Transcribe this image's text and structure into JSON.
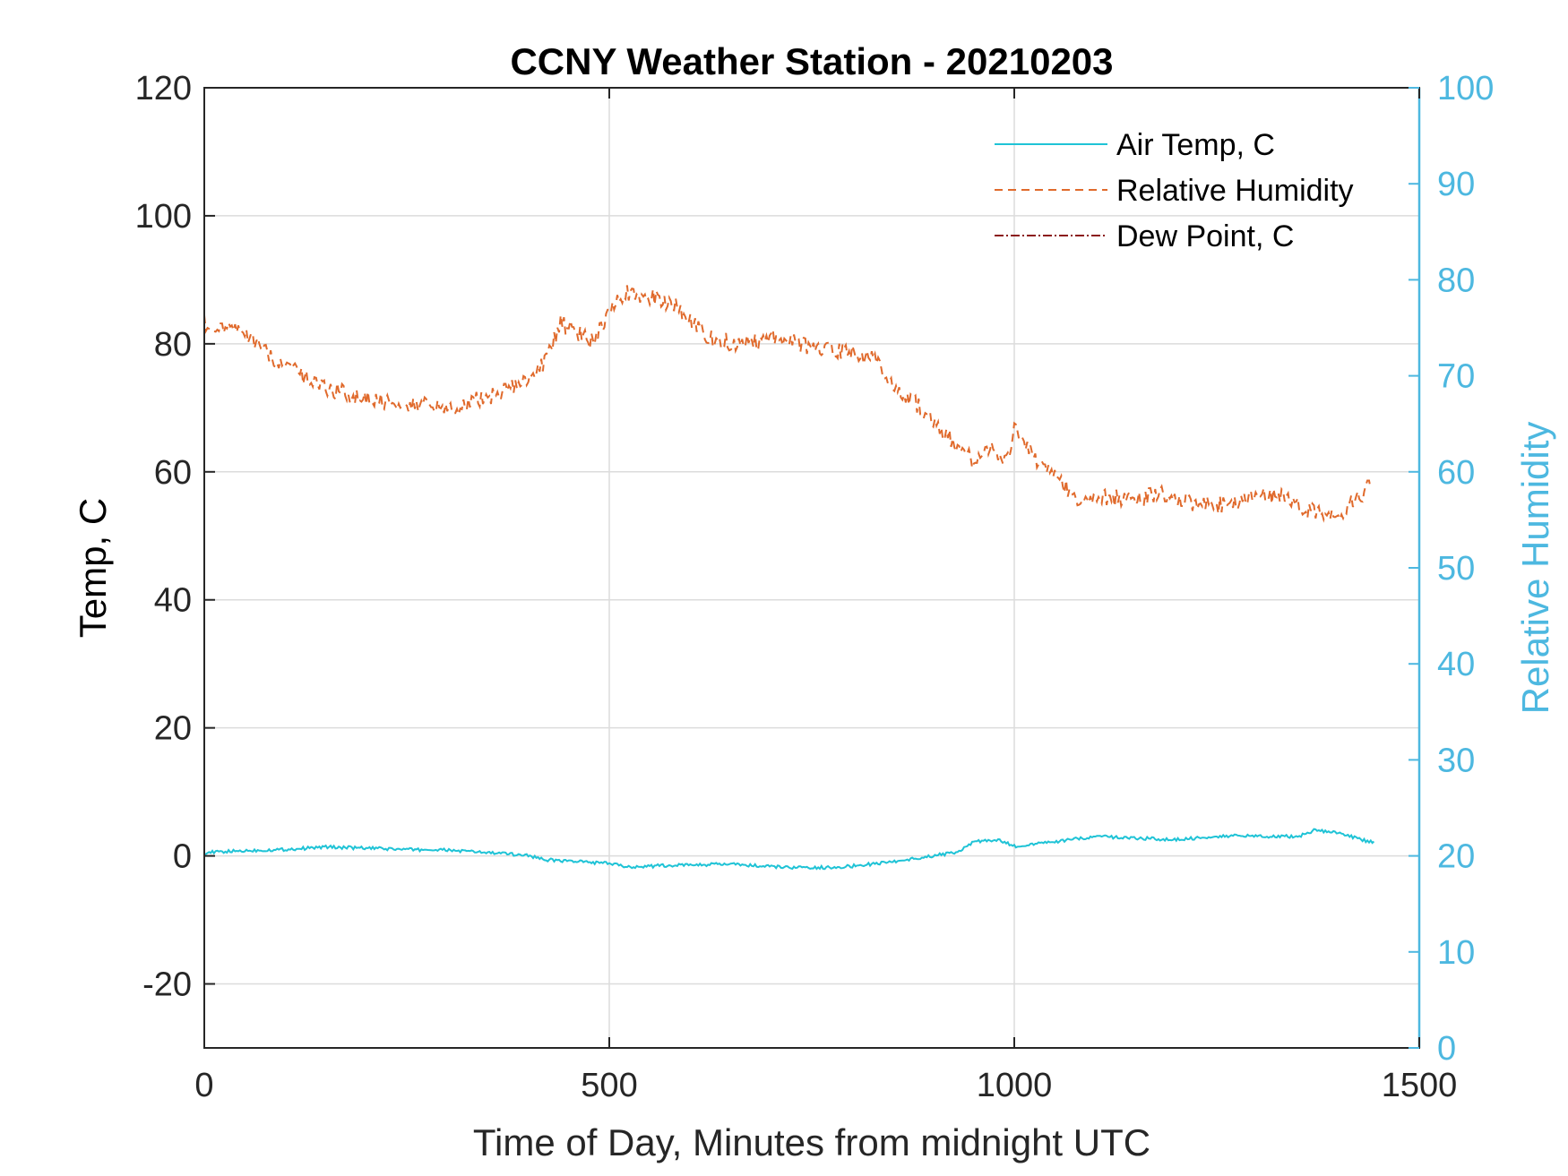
{
  "chart_data": {
    "type": "line",
    "title": "CCNY Weather Station - 20210203",
    "xlabel": "Time of Day, Minutes from midnight UTC",
    "ylabel": "Temp, C",
    "y2label": "Relative Humidity",
    "xlim": [
      0,
      1500
    ],
    "ylim": [
      -30,
      120
    ],
    "y2lim": [
      0,
      100
    ],
    "xticks": [
      "0",
      "500",
      "1000",
      "1500"
    ],
    "yticks": [
      "-20",
      "0",
      "20",
      "40",
      "60",
      "80",
      "100",
      "120"
    ],
    "y2ticks": [
      "0",
      "10",
      "20",
      "30",
      "40",
      "50",
      "60",
      "70",
      "80",
      "90",
      "100"
    ],
    "grid": true,
    "legend_position": "top-right",
    "colors": {
      "air_temp": "#1fc3d6",
      "relative_humidity": "#e06a2c",
      "dew_point": "#8b1a1a",
      "right_axis": "#4db8e0"
    },
    "series": [
      {
        "name": "Air Temp, C",
        "axis": "left",
        "style": "solid",
        "x": [
          0,
          50,
          100,
          150,
          200,
          250,
          300,
          350,
          400,
          420,
          450,
          500,
          520,
          550,
          600,
          650,
          700,
          750,
          800,
          850,
          900,
          930,
          950,
          980,
          1000,
          1050,
          1100,
          1150,
          1200,
          1250,
          1300,
          1350,
          1370,
          1400,
          1445
        ],
        "values": [
          0.5,
          0.8,
          1.0,
          1.4,
          1.2,
          1.0,
          0.9,
          0.5,
          0.1,
          -0.6,
          -0.8,
          -1.2,
          -1.7,
          -1.6,
          -1.4,
          -1.3,
          -1.7,
          -1.9,
          -1.6,
          -0.9,
          0.0,
          0.6,
          2.2,
          2.5,
          1.5,
          2.2,
          3.0,
          2.8,
          2.5,
          3.1,
          3.1,
          3.0,
          4.0,
          3.6,
          2.0
        ]
      },
      {
        "name": "Relative Humidity",
        "axis": "right",
        "style": "dashed",
        "x": [
          0,
          20,
          50,
          80,
          120,
          160,
          200,
          250,
          300,
          350,
          400,
          420,
          440,
          460,
          480,
          500,
          520,
          540,
          580,
          620,
          650,
          680,
          700,
          750,
          800,
          830,
          850,
          880,
          920,
          950,
          970,
          990,
          1000,
          1020,
          1050,
          1080,
          1100,
          1150,
          1180,
          1200,
          1250,
          1300,
          1330,
          1360,
          1400,
          1440
        ],
        "values": [
          75.5,
          75.0,
          74.5,
          72.0,
          70.0,
          68.5,
          67.5,
          67.2,
          66.5,
          67.8,
          69.5,
          71.5,
          75.5,
          74.5,
          73.5,
          77.0,
          78.8,
          78.5,
          77.5,
          74.0,
          73.5,
          73.5,
          74.0,
          73.0,
          72.5,
          71.5,
          69.0,
          67.0,
          63.5,
          61.0,
          62.5,
          61.0,
          64.5,
          62.0,
          59.5,
          57.0,
          57.5,
          57.0,
          57.8,
          57.0,
          56.5,
          57.5,
          57.5,
          56.0,
          55.5,
          58.5
        ]
      },
      {
        "name": "Dew Point, C",
        "axis": "left",
        "style": "dashdot",
        "x": [],
        "values": []
      }
    ]
  }
}
